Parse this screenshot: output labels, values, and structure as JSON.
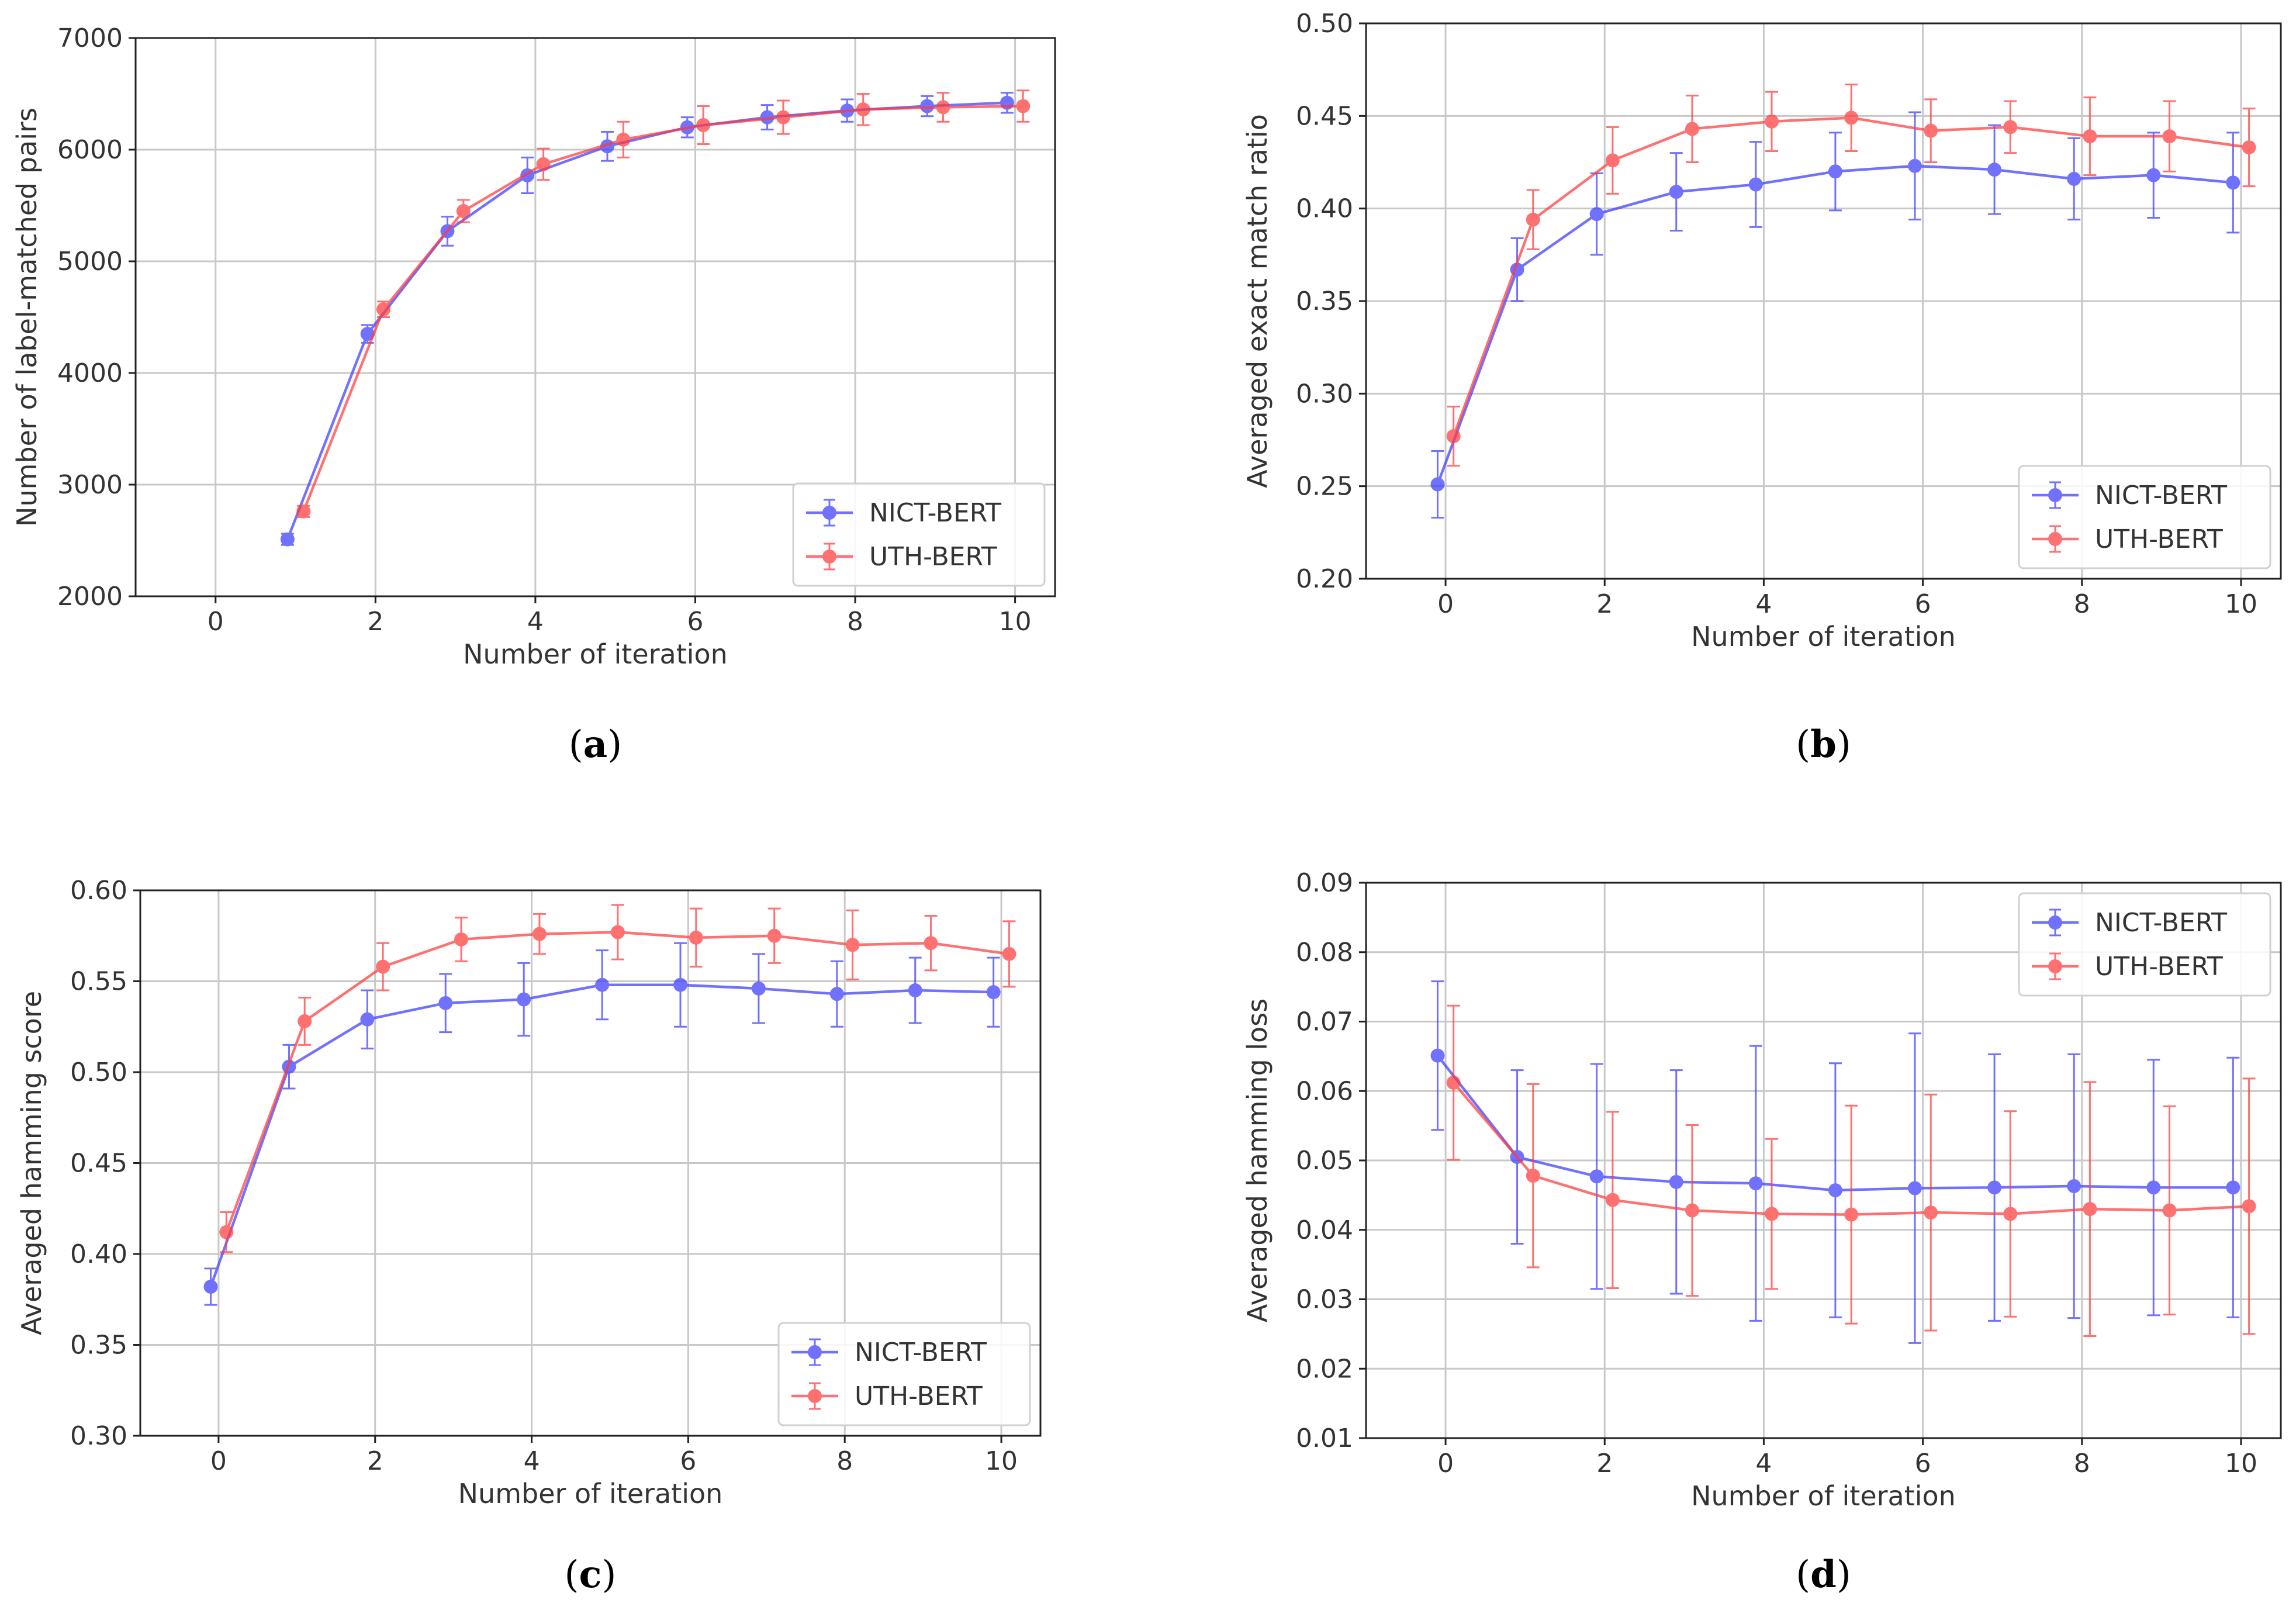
{
  "figure": {
    "colors": {
      "nict": "#3b3bff",
      "uth": "#ff3b3b",
      "grid": "#c8c8c8",
      "axis": "#222222"
    }
  },
  "chart_data": [
    {
      "type": "line",
      "id": "a",
      "panel_label": "a",
      "title": "",
      "xlabel": "Number of iteration",
      "ylabel": "Number of label-matched pairs",
      "xlim": [
        -1,
        10.5
      ],
      "ylim": [
        2000,
        7000
      ],
      "xticks": [
        0,
        2,
        4,
        6,
        8,
        10
      ],
      "yticks": [
        2000,
        3000,
        4000,
        5000,
        6000,
        7000
      ],
      "ytick_labels": [
        "2000",
        "3000",
        "4000",
        "5000",
        "6000",
        "7000"
      ],
      "grid": true,
      "legend_position": "lower-right",
      "series": [
        {
          "name": "NICT-BERT",
          "color": "#3b3bff",
          "x": [
            0.9,
            1.9,
            2.9,
            3.9,
            4.9,
            5.9,
            6.9,
            7.9,
            8.9,
            9.9
          ],
          "y": [
            2510,
            4350,
            5270,
            5770,
            6030,
            6200,
            6290,
            6350,
            6390,
            6420
          ],
          "err": [
            50,
            80,
            130,
            160,
            130,
            90,
            110,
            100,
            90,
            90
          ]
        },
        {
          "name": "UTH-BERT",
          "color": "#ff3b3b",
          "x": [
            1.1,
            2.1,
            3.1,
            4.1,
            5.1,
            6.1,
            7.1,
            8.1,
            9.1,
            10.1
          ],
          "y": [
            2760,
            4570,
            5450,
            5870,
            6090,
            6220,
            6290,
            6360,
            6380,
            6390
          ],
          "err": [
            50,
            70,
            100,
            140,
            160,
            170,
            150,
            140,
            130,
            140
          ]
        }
      ]
    },
    {
      "type": "line",
      "id": "b",
      "panel_label": "b",
      "title": "",
      "xlabel": "Number of iteration",
      "ylabel": "Averaged exact match ratio",
      "xlim": [
        -1,
        10.5
      ],
      "ylim": [
        0.2,
        0.5
      ],
      "xticks": [
        0,
        2,
        4,
        6,
        8,
        10
      ],
      "yticks": [
        0.2,
        0.25,
        0.3,
        0.35,
        0.4,
        0.45,
        0.5
      ],
      "ytick_labels": [
        "0.20",
        "0.25",
        "0.30",
        "0.35",
        "0.40",
        "0.45",
        "0.50"
      ],
      "grid": true,
      "legend_position": "lower-right",
      "series": [
        {
          "name": "NICT-BERT",
          "color": "#3b3bff",
          "x": [
            -0.1,
            0.9,
            1.9,
            2.9,
            3.9,
            4.9,
            5.9,
            6.9,
            7.9,
            8.9,
            9.9
          ],
          "y": [
            0.251,
            0.367,
            0.397,
            0.409,
            0.413,
            0.42,
            0.423,
            0.421,
            0.416,
            0.418,
            0.414
          ],
          "err": [
            0.018,
            0.017,
            0.022,
            0.021,
            0.023,
            0.021,
            0.029,
            0.024,
            0.022,
            0.023,
            0.027
          ]
        },
        {
          "name": "UTH-BERT",
          "color": "#ff3b3b",
          "x": [
            0.1,
            1.1,
            2.1,
            3.1,
            4.1,
            5.1,
            6.1,
            7.1,
            8.1,
            9.1,
            10.1
          ],
          "y": [
            0.277,
            0.394,
            0.426,
            0.443,
            0.447,
            0.449,
            0.442,
            0.444,
            0.439,
            0.439,
            0.433
          ],
          "err": [
            0.016,
            0.016,
            0.018,
            0.018,
            0.016,
            0.018,
            0.017,
            0.014,
            0.021,
            0.019,
            0.021
          ]
        }
      ]
    },
    {
      "type": "line",
      "id": "c",
      "panel_label": "c",
      "title": "",
      "xlabel": "Number of iteration",
      "ylabel": "Averaged hamming score",
      "xlim": [
        -1,
        10.5
      ],
      "ylim": [
        0.3,
        0.6
      ],
      "xticks": [
        0,
        2,
        4,
        6,
        8,
        10
      ],
      "yticks": [
        0.3,
        0.35,
        0.4,
        0.45,
        0.5,
        0.55,
        0.6
      ],
      "ytick_labels": [
        "0.30",
        "0.35",
        "0.40",
        "0.45",
        "0.50",
        "0.55",
        "0.60"
      ],
      "grid": true,
      "legend_position": "lower-right",
      "series": [
        {
          "name": "NICT-BERT",
          "color": "#3b3bff",
          "x": [
            -0.1,
            0.9,
            1.9,
            2.9,
            3.9,
            4.9,
            5.9,
            6.9,
            7.9,
            8.9,
            9.9
          ],
          "y": [
            0.382,
            0.503,
            0.529,
            0.538,
            0.54,
            0.548,
            0.548,
            0.546,
            0.543,
            0.545,
            0.544
          ],
          "err": [
            0.01,
            0.012,
            0.016,
            0.016,
            0.02,
            0.019,
            0.023,
            0.019,
            0.018,
            0.018,
            0.019
          ]
        },
        {
          "name": "UTH-BERT",
          "color": "#ff3b3b",
          "x": [
            0.1,
            1.1,
            2.1,
            3.1,
            4.1,
            5.1,
            6.1,
            7.1,
            8.1,
            9.1,
            10.1
          ],
          "y": [
            0.412,
            0.528,
            0.558,
            0.573,
            0.576,
            0.577,
            0.574,
            0.575,
            0.57,
            0.571,
            0.565
          ],
          "err": [
            0.011,
            0.013,
            0.013,
            0.012,
            0.011,
            0.015,
            0.016,
            0.015,
            0.019,
            0.015,
            0.018
          ]
        }
      ]
    },
    {
      "type": "line",
      "id": "d",
      "panel_label": "d",
      "title": "",
      "xlabel": "Number of iteration",
      "ylabel": "Averaged hamming loss",
      "xlim": [
        -1,
        10.5
      ],
      "ylim": [
        0.01,
        0.09
      ],
      "xticks": [
        0,
        2,
        4,
        6,
        8,
        10
      ],
      "yticks": [
        0.01,
        0.02,
        0.03,
        0.04,
        0.05,
        0.06,
        0.07,
        0.08,
        0.09
      ],
      "ytick_labels": [
        "0.01",
        "0.02",
        "0.03",
        "0.04",
        "0.05",
        "0.06",
        "0.07",
        "0.08",
        "0.09"
      ],
      "grid": true,
      "legend_position": "upper-right",
      "series": [
        {
          "name": "NICT-BERT",
          "color": "#3b3bff",
          "x": [
            -0.1,
            0.9,
            1.9,
            2.9,
            3.9,
            4.9,
            5.9,
            6.9,
            7.9,
            8.9,
            9.9
          ],
          "y": [
            0.0651,
            0.0505,
            0.0477,
            0.0469,
            0.0467,
            0.0457,
            0.046,
            0.0461,
            0.0463,
            0.0461,
            0.0461
          ],
          "err": [
            0.0107,
            0.0125,
            0.0162,
            0.0161,
            0.0198,
            0.0183,
            0.0223,
            0.0192,
            0.019,
            0.0184,
            0.0187
          ]
        },
        {
          "name": "UTH-BERT",
          "color": "#ff3b3b",
          "x": [
            0.1,
            1.1,
            2.1,
            3.1,
            4.1,
            5.1,
            6.1,
            7.1,
            8.1,
            9.1,
            10.1
          ],
          "y": [
            0.0612,
            0.0478,
            0.0443,
            0.0428,
            0.0423,
            0.0422,
            0.0425,
            0.0423,
            0.043,
            0.0428,
            0.0434
          ],
          "err": [
            0.0111,
            0.0132,
            0.0127,
            0.0123,
            0.0108,
            0.0157,
            0.017,
            0.0148,
            0.0183,
            0.015,
            0.0184
          ]
        }
      ]
    }
  ]
}
